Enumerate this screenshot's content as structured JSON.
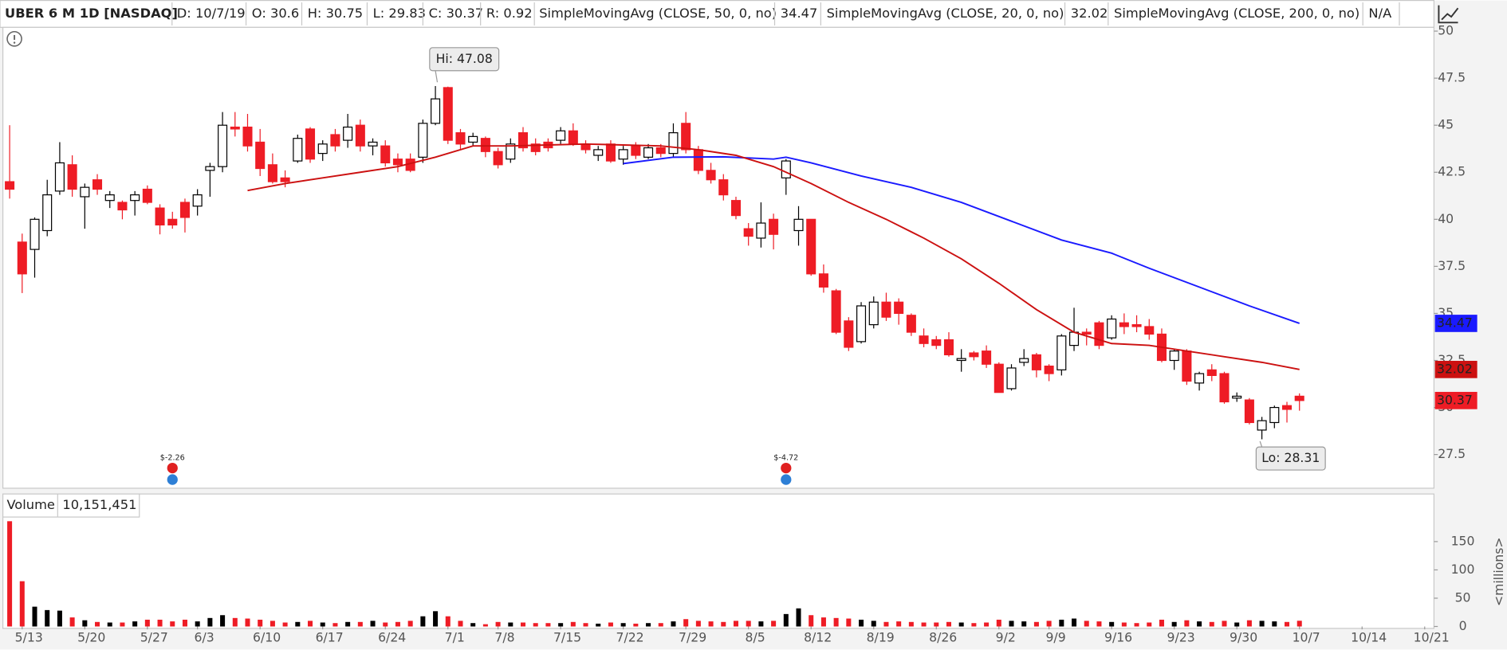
{
  "chart_data": {
    "type": "candlestick",
    "symbol": "UBER 6 M 1D [NASDAQ]",
    "date_label": "D: 10/7/19",
    "ohlc_labels": [
      "O: 30.6",
      "H: 30.75",
      "L: 29.83",
      "C: 30.37",
      "R: 0.92"
    ],
    "close_label": "30.37",
    "up_color": "#000000",
    "down_color": "#ee1c25",
    "xlim": [
      -0.54,
      113.74
    ],
    "xticks": [
      {
        "value": 1,
        "label": "5/13"
      },
      {
        "value": 6,
        "label": "5/20"
      },
      {
        "value": 11,
        "label": "5/27"
      },
      {
        "value": 15,
        "label": "6/3"
      },
      {
        "value": 20,
        "label": "6/10"
      },
      {
        "value": 25,
        "label": "6/17"
      },
      {
        "value": 30,
        "label": "6/24"
      },
      {
        "value": 35,
        "label": "7/1"
      },
      {
        "value": 39,
        "label": "7/8"
      },
      {
        "value": 44,
        "label": "7/15"
      },
      {
        "value": 49,
        "label": "7/22"
      },
      {
        "value": 54,
        "label": "7/29"
      },
      {
        "value": 59,
        "label": "8/5"
      },
      {
        "value": 64,
        "label": "8/12"
      },
      {
        "value": 69,
        "label": "8/19"
      },
      {
        "value": 74,
        "label": "8/26"
      },
      {
        "value": 79,
        "label": "9/2"
      },
      {
        "value": 83,
        "label": "9/9"
      },
      {
        "value": 88,
        "label": "9/16"
      },
      {
        "value": 93,
        "label": "9/23"
      },
      {
        "value": 98,
        "label": "9/30"
      },
      {
        "value": 103,
        "label": "10/7"
      },
      {
        "value": 108,
        "label": "10/14"
      },
      {
        "value": 113,
        "label": "10/21"
      }
    ],
    "ylim": [
      25.71,
      50.2
    ],
    "yticks": [
      27.5,
      30,
      32.5,
      35,
      37.5,
      40,
      42.5,
      45,
      47.5,
      50
    ],
    "open": [
      42.0,
      38.79,
      38.4,
      39.4,
      41.5,
      42.9,
      41.2,
      42.1,
      41.0,
      40.9,
      41.0,
      41.6,
      40.6,
      40.0,
      40.9,
      40.7,
      42.6,
      42.8,
      44.9,
      44.9,
      44.1,
      42.9,
      42.2,
      43.1,
      44.8,
      43.5,
      44.5,
      44.2,
      45.0,
      43.9,
      43.9,
      43.2,
      43.2,
      43.3,
      45.1,
      47.0,
      44.6,
      44.1,
      44.3,
      43.6,
      43.2,
      44.6,
      44.0,
      44.1,
      44.2,
      44.7,
      44.0,
      43.4,
      44.0,
      43.2,
      43.9,
      43.3,
      43.8,
      43.5,
      45.1,
      43.7,
      42.6,
      42.1,
      41.0,
      39.5,
      39.0,
      40.0,
      42.2,
      39.4,
      40.0,
      37.1,
      36.2,
      34.6,
      33.5,
      34.4,
      35.6,
      35.6,
      34.9,
      33.8,
      33.6,
      33.6,
      32.5,
      32.9,
      33.0,
      32.3,
      31.0,
      32.4,
      32.8,
      32.2,
      32.0,
      33.3,
      34.0,
      34.5,
      33.7,
      34.5,
      34.4,
      34.3,
      33.9,
      32.5,
      33.0,
      31.3,
      32.0,
      31.8,
      30.5,
      30.4,
      28.8,
      29.2,
      30.1,
      30.6
    ],
    "high": [
      45.0,
      39.24,
      40.1,
      42.1,
      44.1,
      43.4,
      41.9,
      42.4,
      41.5,
      41.0,
      41.5,
      41.8,
      40.8,
      40.4,
      41.1,
      41.6,
      43.0,
      45.7,
      45.7,
      45.6,
      44.8,
      43.5,
      42.6,
      44.5,
      44.9,
      44.2,
      44.8,
      45.6,
      45.3,
      44.3,
      44.2,
      43.5,
      43.5,
      45.3,
      47.08,
      47.05,
      44.8,
      44.6,
      44.4,
      43.8,
      44.3,
      44.9,
      44.3,
      44.3,
      44.9,
      45.1,
      44.2,
      43.9,
      44.2,
      43.9,
      44.1,
      44.0,
      44.0,
      45.1,
      45.7,
      43.9,
      43.0,
      42.4,
      41.2,
      39.8,
      40.9,
      40.3,
      43.2,
      40.7,
      40.0,
      37.6,
      36.3,
      34.8,
      35.6,
      35.9,
      36.1,
      35.8,
      35.0,
      34.2,
      33.8,
      34.0,
      33.1,
      33.0,
      33.3,
      32.4,
      32.3,
      33.1,
      32.9,
      32.3,
      33.9,
      35.3,
      34.2,
      34.6,
      34.9,
      35.0,
      34.9,
      34.7,
      34.2,
      33.1,
      33.1,
      31.9,
      32.3,
      31.9,
      30.8,
      30.5,
      29.5,
      30.1,
      30.3,
      30.75
    ],
    "low": [
      41.1,
      36.08,
      36.9,
      39.1,
      41.3,
      41.2,
      39.5,
      41.3,
      40.6,
      40.0,
      40.2,
      40.8,
      39.2,
      39.5,
      39.3,
      40.2,
      41.2,
      42.5,
      44.4,
      43.6,
      42.3,
      41.9,
      41.7,
      43.0,
      43.0,
      43.1,
      43.6,
      43.8,
      43.6,
      43.4,
      42.8,
      42.5,
      42.5,
      43.0,
      45.0,
      44.0,
      43.7,
      43.9,
      43.3,
      42.7,
      43.0,
      43.6,
      43.4,
      43.6,
      44.0,
      43.9,
      43.5,
      43.1,
      43.0,
      42.9,
      43.2,
      43.2,
      43.3,
      43.3,
      43.5,
      42.4,
      41.9,
      41.0,
      40.0,
      38.6,
      38.5,
      38.4,
      41.3,
      38.6,
      37.0,
      36.1,
      33.9,
      33.0,
      33.4,
      34.2,
      34.6,
      34.4,
      33.8,
      33.2,
      33.1,
      32.7,
      31.9,
      32.5,
      32.1,
      30.8,
      30.9,
      32.2,
      31.6,
      31.4,
      31.7,
      33.0,
      33.3,
      33.1,
      33.6,
      33.9,
      34.0,
      33.6,
      32.4,
      32.0,
      31.2,
      30.9,
      31.4,
      30.2,
      30.3,
      29.1,
      28.31,
      28.9,
      29.2,
      29.83
    ],
    "close": [
      41.6,
      37.1,
      40.0,
      41.3,
      43.0,
      41.6,
      41.7,
      41.6,
      41.3,
      40.5,
      41.3,
      40.9,
      39.7,
      39.7,
      40.1,
      41.3,
      42.8,
      45.0,
      44.8,
      43.9,
      42.7,
      42.0,
      42.0,
      44.3,
      43.2,
      44.0,
      43.9,
      44.9,
      43.9,
      44.1,
      43.0,
      42.9,
      42.6,
      45.1,
      46.4,
      44.2,
      44.0,
      44.4,
      43.6,
      42.9,
      44.0,
      43.8,
      43.6,
      43.8,
      44.7,
      44.0,
      43.7,
      43.7,
      43.1,
      43.7,
      43.4,
      43.8,
      43.5,
      44.6,
      43.7,
      42.6,
      42.1,
      41.3,
      40.2,
      39.1,
      39.8,
      39.2,
      43.1,
      40.0,
      37.1,
      36.4,
      34.0,
      33.2,
      35.4,
      35.6,
      34.8,
      35.0,
      34.0,
      33.4,
      33.3,
      32.8,
      32.6,
      32.7,
      32.3,
      30.8,
      32.1,
      32.6,
      32.0,
      31.8,
      33.8,
      34.0,
      33.9,
      33.3,
      34.7,
      34.3,
      34.3,
      33.9,
      32.5,
      33.0,
      31.4,
      31.8,
      31.7,
      30.3,
      30.6,
      29.2,
      29.3,
      30.0,
      29.9,
      30.37
    ],
    "series": [
      {
        "name": "SimpleMovingAvg (CLOSE, 50, 0, no)",
        "color": "#1a1aff",
        "last_label": "34.47",
        "x": [
          49,
          53,
          57,
          61,
          62,
          64,
          68,
          72,
          76,
          80,
          84,
          88,
          91,
          95,
          99,
          103
        ],
        "values": [
          42.96,
          43.3,
          43.32,
          43.2,
          43.3,
          43.0,
          42.3,
          41.7,
          40.9,
          39.9,
          38.9,
          38.2,
          37.4,
          36.4,
          35.4,
          34.47
        ]
      },
      {
        "name": "SimpleMovingAvg (CLOSE, 20, 0, no)",
        "color": "#cc1111",
        "last_label": "32.02",
        "x": [
          19,
          22,
          25,
          28,
          31,
          34,
          37,
          40,
          43,
          46,
          49,
          52,
          55,
          58,
          61,
          64,
          67,
          70,
          73,
          76,
          79,
          82,
          85,
          88,
          91,
          94,
          97,
          100,
          103
        ],
        "values": [
          41.53,
          41.9,
          42.2,
          42.5,
          42.8,
          43.3,
          43.9,
          43.9,
          43.95,
          44.0,
          43.95,
          43.9,
          43.7,
          43.4,
          42.8,
          41.9,
          40.9,
          40.0,
          39.0,
          37.9,
          36.6,
          35.2,
          34.0,
          33.4,
          33.3,
          33.0,
          32.7,
          32.4,
          32.02
        ]
      },
      {
        "name": "SimpleMovingAvg (CLOSE, 200, 0, no)",
        "color": "#1e8a1e",
        "last_label": "N/A",
        "x": [],
        "values": []
      }
    ],
    "annotations": [
      {
        "text": "Hi: 47.08",
        "x": 34,
        "y": 47.08
      },
      {
        "text": "Lo: 28.31",
        "x": 100,
        "y": 28.31
      }
    ],
    "earnings": [
      {
        "text": "$-2.26",
        "x": 13
      },
      {
        "text": "$-4.72",
        "x": 62
      }
    ],
    "volume": {
      "label": "Volume",
      "value_label": "10,151,451",
      "axis_label": "<millions>",
      "ylim": [
        0,
        190
      ],
      "yticks": [
        0,
        50,
        100,
        150
      ],
      "values": [
        186,
        80,
        35,
        29,
        28,
        16,
        11,
        8,
        7,
        7,
        9,
        12,
        12,
        9,
        12,
        9,
        15,
        20,
        15,
        14,
        12,
        10,
        7,
        8,
        10,
        7,
        6,
        8,
        8,
        10,
        7,
        8,
        10,
        18,
        27,
        18,
        10,
        6,
        4,
        8,
        7,
        7,
        6,
        6,
        6,
        8,
        6,
        5,
        7,
        6,
        5,
        6,
        6,
        9,
        13,
        10,
        9,
        8,
        10,
        10,
        9,
        10,
        22,
        32,
        20,
        16,
        15,
        14,
        12,
        10,
        8,
        9,
        8,
        7,
        7,
        8,
        7,
        6,
        7,
        12,
        10,
        9,
        8,
        10,
        12,
        14,
        10,
        9,
        8,
        7,
        6,
        7,
        12,
        8,
        11,
        9,
        8,
        10,
        7,
        11,
        10,
        9,
        8,
        10.151451
      ]
    }
  }
}
